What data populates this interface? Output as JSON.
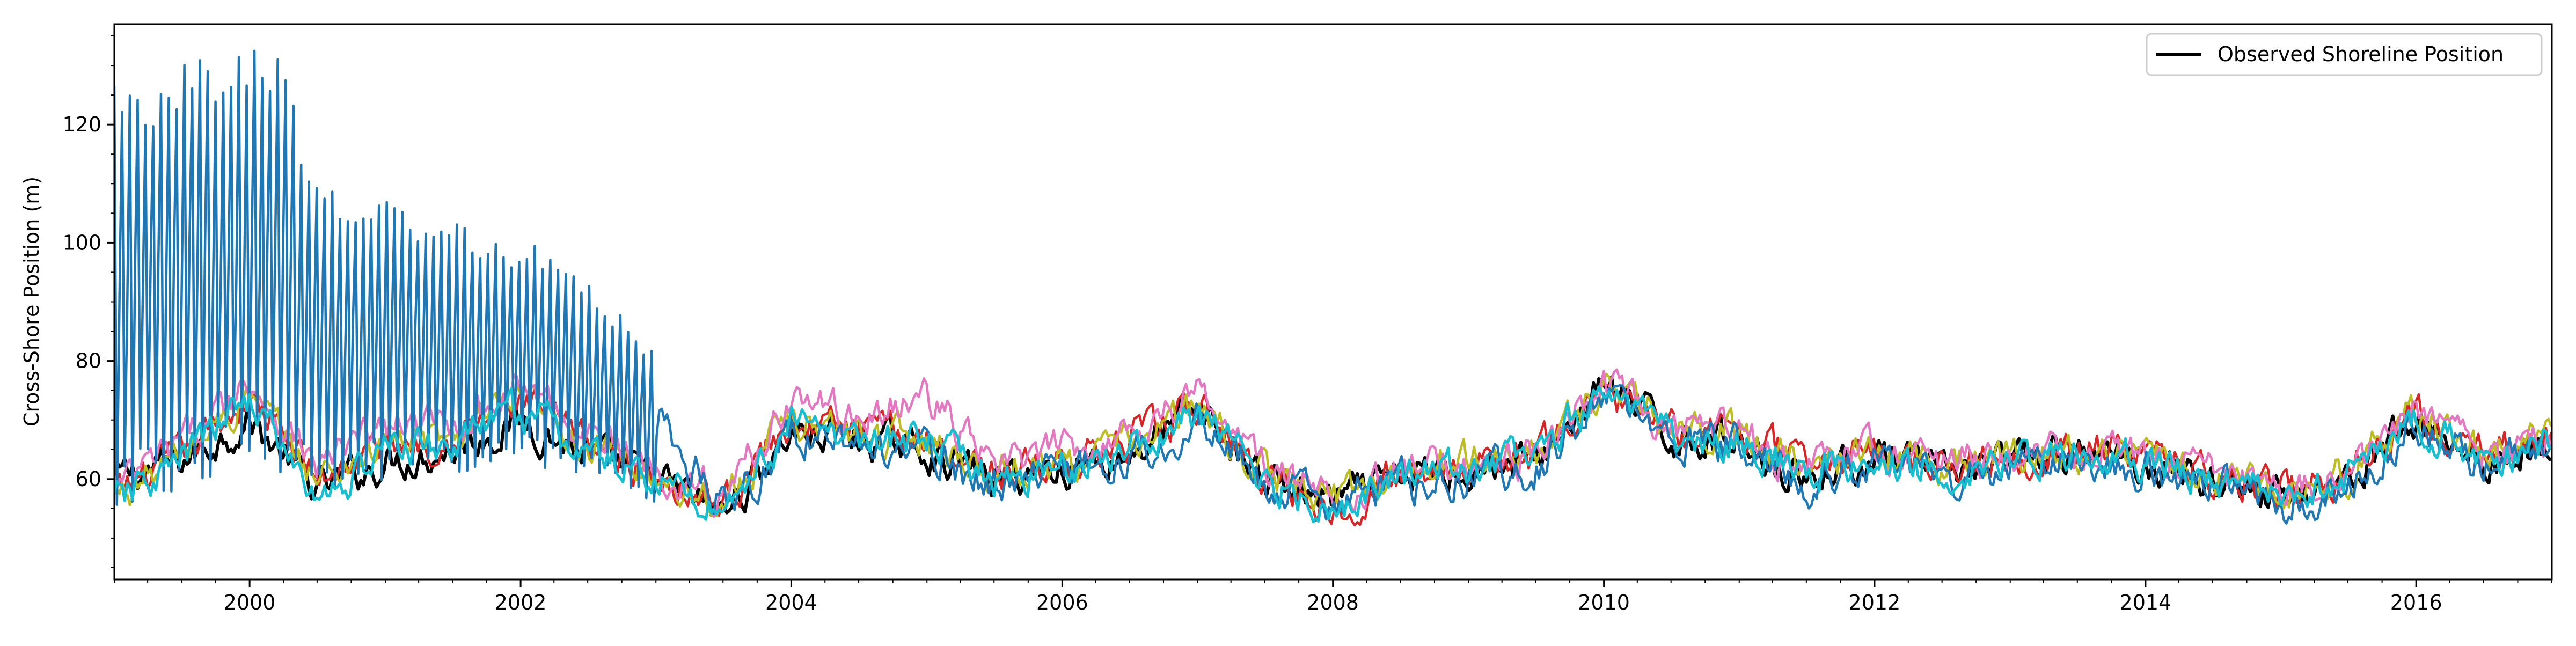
{
  "chart_data": {
    "type": "line",
    "title": "",
    "xlabel": "",
    "ylabel": "Cross-Shore Position (m)",
    "xlim": [
      "1999-01-01",
      "2017-01-01"
    ],
    "ylim": [
      43,
      137
    ],
    "x_ticks": [
      "2000",
      "2002",
      "2004",
      "2006",
      "2008",
      "2010",
      "2012",
      "2014",
      "2016"
    ],
    "y_ticks": [
      60,
      80,
      100,
      120
    ],
    "legend": {
      "placement": "top-right",
      "entries": [
        {
          "label": "Observed Shoreline Position",
          "color": "#000000"
        }
      ]
    },
    "grid": false,
    "series": [
      {
        "name": "Observed Shoreline Position",
        "color": "#000000",
        "x": [
          "1999-01-01",
          "1999-07-01",
          "2000-01-01",
          "2000-07-01",
          "2001-01-01",
          "2001-07-01",
          "2002-01-01",
          "2002-07-01",
          "2003-01-01",
          "2003-07-01",
          "2004-01-01",
          "2004-07-01",
          "2005-01-01",
          "2005-07-01",
          "2006-01-01",
          "2006-07-01",
          "2007-01-01",
          "2007-07-01",
          "2008-01-01",
          "2008-07-01",
          "2009-01-01",
          "2009-07-01",
          "2010-01-01",
          "2010-07-01",
          "2011-01-01",
          "2011-07-01",
          "2012-01-01",
          "2012-07-01",
          "2013-01-01",
          "2013-07-01",
          "2014-01-01",
          "2014-07-01",
          "2015-01-01",
          "2015-07-01",
          "2016-01-01",
          "2016-07-01",
          "2017-01-01"
        ],
        "y": [
          60,
          63,
          70,
          58,
          63,
          65,
          70,
          64,
          60,
          54,
          68,
          67,
          65,
          60,
          62,
          64,
          72,
          60,
          56,
          60,
          62,
          63,
          76,
          67,
          67,
          60,
          64,
          61,
          63,
          64,
          63,
          60,
          57,
          60,
          70,
          63,
          66
        ]
      },
      {
        "color": "#d62728",
        "x": [
          "1999-01-01",
          "1999-07-01",
          "2000-01-01",
          "2000-07-01",
          "2001-01-01",
          "2001-07-01",
          "2002-01-01",
          "2002-07-01",
          "2003-01-01",
          "2003-07-01",
          "2004-01-01",
          "2004-07-01",
          "2005-01-01",
          "2005-07-01",
          "2006-01-01",
          "2006-07-01",
          "2007-01-01",
          "2007-07-01",
          "2008-01-01",
          "2008-07-01",
          "2009-01-01",
          "2009-07-01",
          "2010-01-01",
          "2010-07-01",
          "2011-01-01",
          "2011-07-01",
          "2012-01-01",
          "2012-07-01",
          "2013-01-01",
          "2013-07-01",
          "2014-01-01",
          "2014-07-01",
          "2015-01-01",
          "2015-07-01",
          "2016-01-01",
          "2016-07-01",
          "2017-01-01"
        ],
        "y": [
          57,
          64,
          74,
          60,
          66,
          67,
          73,
          66,
          61,
          56,
          70,
          68,
          67,
          61,
          63,
          66,
          72,
          61,
          55,
          61,
          63,
          64,
          75,
          68,
          68,
          62,
          65,
          63,
          64,
          65,
          64,
          61,
          58,
          61,
          71,
          64,
          67
        ]
      },
      {
        "color": "#bcbd22",
        "x": [
          "1999-01-01",
          "1999-07-01",
          "2000-01-01",
          "2000-07-01",
          "2001-01-01",
          "2001-07-01",
          "2002-01-01",
          "2002-07-01",
          "2003-01-01",
          "2003-07-01",
          "2004-01-01",
          "2004-07-01",
          "2005-01-01",
          "2005-07-01",
          "2006-01-01",
          "2006-07-01",
          "2007-01-01",
          "2007-07-01",
          "2008-01-01",
          "2008-07-01",
          "2009-01-01",
          "2009-07-01",
          "2010-01-01",
          "2010-07-01",
          "2011-01-01",
          "2011-07-01",
          "2012-01-01",
          "2012-07-01",
          "2013-01-01",
          "2013-07-01",
          "2014-01-01",
          "2014-07-01",
          "2015-01-01",
          "2015-07-01",
          "2016-01-01",
          "2016-07-01",
          "2017-01-01"
        ],
        "y": [
          57,
          64,
          74,
          60,
          66,
          67,
          73,
          66,
          61,
          56,
          70,
          68,
          67,
          61,
          63,
          66,
          72,
          61,
          57,
          61,
          63,
          64,
          76,
          68,
          68,
          62,
          65,
          63,
          64,
          65,
          64,
          61,
          58,
          61,
          71,
          64,
          67
        ]
      },
      {
        "color": "#e377c2",
        "x": [
          "1999-01-01",
          "1999-07-01",
          "2000-01-01",
          "2000-07-01",
          "2001-01-01",
          "2001-07-01",
          "2002-01-01",
          "2002-07-01",
          "2003-01-01",
          "2003-07-01",
          "2004-01-01",
          "2004-07-01",
          "2005-01-01",
          "2005-07-01",
          "2006-01-01",
          "2006-07-01",
          "2007-01-01",
          "2007-07-01",
          "2008-01-01",
          "2008-07-01",
          "2009-01-01",
          "2009-07-01",
          "2010-01-01",
          "2010-07-01",
          "2011-01-01",
          "2011-07-01",
          "2012-01-01",
          "2012-07-01",
          "2013-01-01",
          "2013-07-01",
          "2014-01-01",
          "2014-07-01",
          "2015-01-01",
          "2015-07-01",
          "2016-01-01",
          "2016-07-01",
          "2017-01-01"
        ],
        "y": [
          58,
          66,
          77,
          62,
          69,
          69,
          76,
          68,
          62,
          57,
          74,
          70,
          74,
          62,
          65,
          68,
          75,
          62,
          57,
          61,
          63,
          64,
          76,
          68,
          68,
          62,
          65,
          63,
          64,
          65,
          64,
          61,
          58,
          61,
          72,
          64,
          67
        ]
      },
      {
        "color": "#1f77b4",
        "x": [
          "1999-01-01",
          "1999-04-01",
          "1999-07-01",
          "1999-10-01",
          "2000-01-01",
          "2000-04-01",
          "2000-07-01",
          "2000-10-01",
          "2001-01-01",
          "2001-04-01",
          "2001-07-01",
          "2001-10-01",
          "2002-01-01",
          "2002-04-01",
          "2002-07-01",
          "2002-10-01",
          "2003-01-01",
          "2003-04-01",
          "2003-07-01",
          "2003-10-01",
          "2004-01-01",
          "2004-07-01",
          "2005-01-01",
          "2005-07-01",
          "2006-01-01",
          "2006-07-01",
          "2007-01-01",
          "2007-07-01",
          "2008-01-01",
          "2008-07-01",
          "2009-01-01",
          "2009-07-01",
          "2010-01-01",
          "2010-07-01",
          "2011-01-01",
          "2011-07-01",
          "2012-01-01",
          "2012-07-01",
          "2013-01-01",
          "2013-07-01",
          "2014-01-01",
          "2014-07-01",
          "2015-01-01",
          "2015-07-01",
          "2016-01-01",
          "2016-07-01",
          "2017-01-01"
        ],
        "y": [
          95,
          96,
          95,
          97,
          98,
          98,
          85,
          88,
          87,
          84,
          86,
          83,
          84,
          82,
          78,
          75,
          72,
          62,
          57,
          60,
          68,
          66,
          64,
          59,
          62,
          64,
          70,
          59,
          56,
          59,
          61,
          62,
          74,
          66,
          66,
          59,
          63,
          60,
          62,
          63,
          62,
          59,
          56,
          59,
          69,
          62,
          65
        ],
        "envelope_high": [
          128,
          126,
          131,
          132,
          133,
          131,
          110,
          109,
          108,
          105,
          104,
          101,
          100,
          99,
          93,
          88,
          82,
          70,
          63,
          66,
          72,
          70,
          68,
          64,
          66,
          68,
          74,
          64,
          60,
          64,
          65,
          66,
          79,
          70,
          70,
          65,
          68,
          66,
          67,
          68,
          67,
          65,
          62,
          65,
          73,
          67,
          70
        ],
        "envelope_low": [
          55,
          57,
          58,
          60,
          62,
          60,
          56,
          58,
          60,
          60,
          60,
          61,
          62,
          61,
          60,
          58,
          56,
          54,
          52,
          54,
          62,
          61,
          60,
          53,
          56,
          58,
          63,
          52,
          51,
          53,
          55,
          56,
          62,
          58,
          58,
          53,
          55,
          53,
          55,
          56,
          55,
          52,
          50,
          53,
          60,
          55,
          58
        ]
      },
      {
        "color": "#17becf",
        "x": [
          "1999-01-01",
          "1999-07-01",
          "2000-01-01",
          "2000-07-01",
          "2001-01-01",
          "2001-07-01",
          "2002-01-01",
          "2002-07-01",
          "2003-01-01",
          "2003-07-01",
          "2004-01-01",
          "2004-07-01",
          "2005-01-01",
          "2005-07-01",
          "2006-01-01",
          "2006-07-01",
          "2007-01-01",
          "2007-07-01",
          "2008-01-01",
          "2008-07-01",
          "2009-01-01",
          "2009-07-01",
          "2010-01-01",
          "2010-07-01",
          "2011-01-01",
          "2011-07-01",
          "2012-01-01",
          "2012-07-01",
          "2013-01-01",
          "2013-07-01",
          "2014-01-01",
          "2014-07-01",
          "2015-01-01",
          "2015-07-01",
          "2016-01-01",
          "2016-07-01",
          "2017-01-01"
        ],
        "y": [
          56,
          63,
          74,
          56,
          65,
          66,
          72,
          64,
          60,
          55,
          69,
          67,
          66,
          60,
          62,
          65,
          71,
          60,
          55,
          60,
          62,
          63,
          76,
          67,
          67,
          61,
          64,
          62,
          63,
          64,
          63,
          60,
          57,
          60,
          70,
          63,
          66
        ]
      }
    ]
  }
}
